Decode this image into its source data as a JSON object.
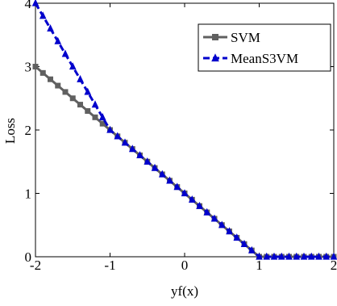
{
  "chart_data": {
    "type": "line",
    "xlabel": "yf(x)",
    "ylabel": "Loss",
    "xlim": [
      -2,
      2
    ],
    "ylim": [
      0,
      4
    ],
    "xticks": [
      -2,
      -1,
      0,
      1,
      2
    ],
    "yticks": [
      0,
      1,
      2,
      3,
      4
    ],
    "xtick_labels": [
      "-2",
      "-1",
      "0",
      "1",
      "2"
    ],
    "ytick_labels": [
      "0",
      "1",
      "2",
      "3",
      "4"
    ],
    "grid": false,
    "legend_position": "top-right",
    "series": [
      {
        "name": "SVM",
        "color": "#606060",
        "marker": "square",
        "linestyle": "solid",
        "x": [
          -2,
          -1,
          1,
          2
        ],
        "y": [
          3,
          2,
          0,
          0
        ]
      },
      {
        "name": "MeanS3VM",
        "color": "#0000cc",
        "marker": "triangle",
        "linestyle": "dashed",
        "x": [
          -2,
          -1,
          1,
          2
        ],
        "y": [
          4,
          2,
          0,
          0
        ]
      }
    ]
  }
}
